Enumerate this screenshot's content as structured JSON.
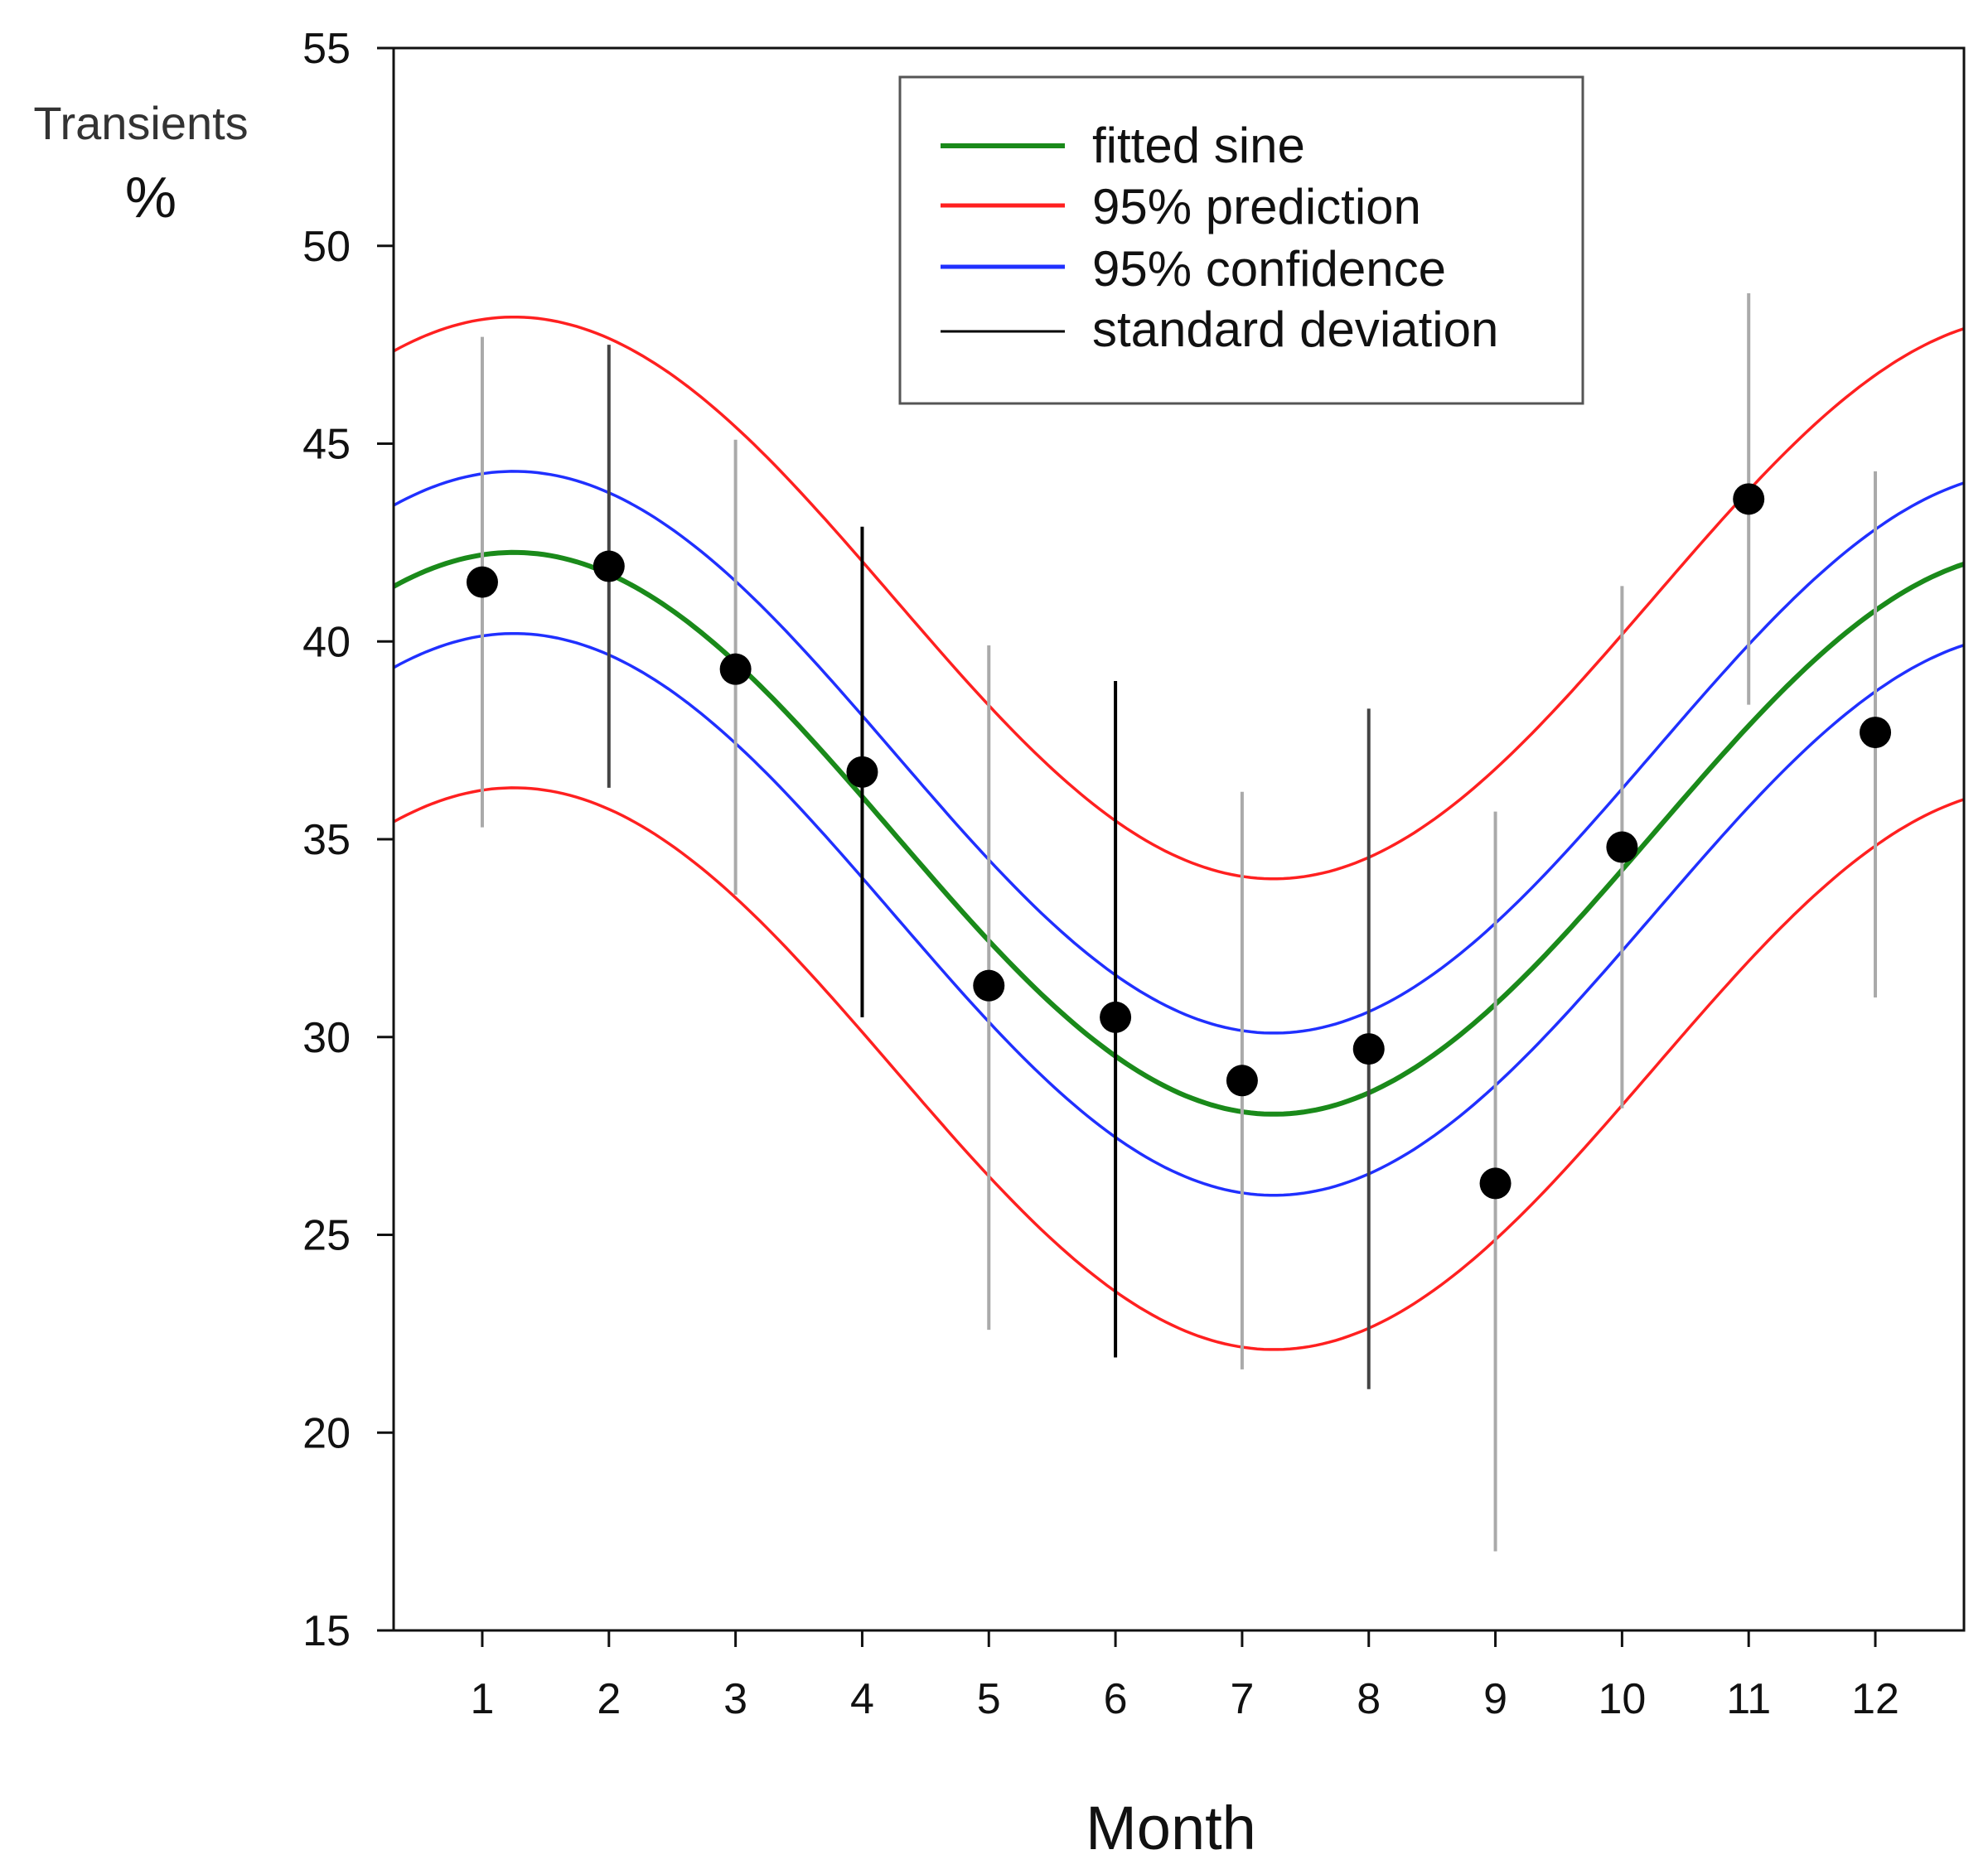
{
  "chart_data": {
    "type": "scatter",
    "title": "",
    "xlabel": "Month",
    "ylabel": "Transients",
    "ylabel_unit": "%",
    "xlim": [
      0.3,
      12.7
    ],
    "ylim": [
      15,
      55
    ],
    "xticks": [
      1,
      2,
      3,
      4,
      5,
      6,
      7,
      8,
      9,
      10,
      11,
      12
    ],
    "yticks": [
      15,
      20,
      25,
      30,
      35,
      40,
      45,
      50,
      55
    ],
    "grid": false,
    "legend_position": "top-right",
    "legend": [
      {
        "label": "fitted sine",
        "color": "#1a8a1a"
      },
      {
        "label": "95% prediction",
        "color": "#ff2020"
      },
      {
        "label": "95% confidence",
        "color": "#2030ff"
      },
      {
        "label": "standard deviation",
        "color": "#000000"
      }
    ],
    "points": [
      {
        "x": 1,
        "y": 41.5,
        "sd_low": 35.3,
        "sd_high": 47.7
      },
      {
        "x": 2,
        "y": 41.9,
        "sd_low": 36.3,
        "sd_high": 47.5
      },
      {
        "x": 3,
        "y": 39.3,
        "sd_low": 33.6,
        "sd_high": 45.1
      },
      {
        "x": 4,
        "y": 36.7,
        "sd_low": 30.5,
        "sd_high": 42.9
      },
      {
        "x": 5,
        "y": 31.3,
        "sd_low": 22.6,
        "sd_high": 39.9
      },
      {
        "x": 6,
        "y": 30.5,
        "sd_low": 21.9,
        "sd_high": 39.0
      },
      {
        "x": 7,
        "y": 28.9,
        "sd_low": 21.6,
        "sd_high": 36.2
      },
      {
        "x": 8,
        "y": 29.7,
        "sd_low": 21.1,
        "sd_high": 38.3
      },
      {
        "x": 9,
        "y": 26.3,
        "sd_low": 17.0,
        "sd_high": 35.7
      },
      {
        "x": 10,
        "y": 34.8,
        "sd_low": 28.2,
        "sd_high": 41.4
      },
      {
        "x": 11,
        "y": 43.6,
        "sd_low": 38.4,
        "sd_high": 48.8
      },
      {
        "x": 12,
        "y": 37.7,
        "sd_low": 31.0,
        "sd_high": 44.3
      }
    ],
    "sd_bar_colors": [
      "#aaaaaa",
      "#444444",
      "#aaaaaa",
      "#000000",
      "#aaaaaa",
      "#000000",
      "#aaaaaa",
      "#444444",
      "#aaaaaa",
      "#aaaaaa",
      "#aaaaaa",
      "#aaaaaa"
    ],
    "fitted_sine": {
      "mean": 35.15,
      "amplitude": 7.1,
      "peak_month": 1.25,
      "period": 12,
      "confidence_halfwidth": 2.05,
      "prediction_halfwidth": 5.95
    }
  }
}
